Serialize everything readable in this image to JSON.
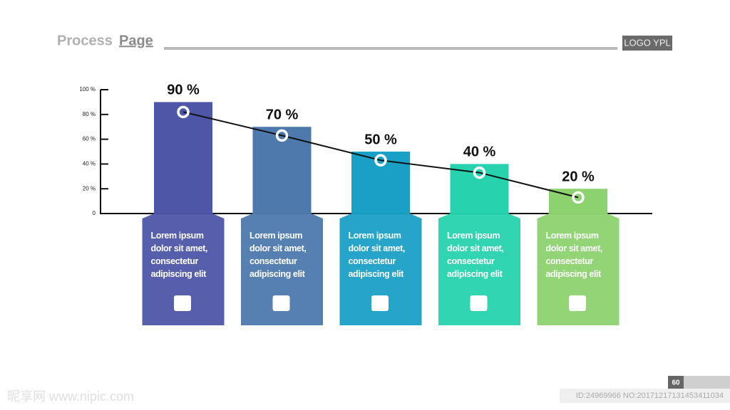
{
  "header": {
    "title_part1": "Process",
    "title_part2": "Page",
    "logo": "LOGO YPL"
  },
  "chart_data": {
    "type": "bar",
    "ylim": [
      0,
      100
    ],
    "yticks": [
      0,
      {
        "value": 20,
        "label": "20 %"
      },
      {
        "value": 40,
        "label": "40 %"
      },
      {
        "value": 60,
        "label": "60 %"
      },
      {
        "value": 80,
        "label": "80 %"
      },
      {
        "value": 100,
        "label": "100 %"
      }
    ],
    "series": [
      {
        "type": "bar",
        "colors": [
          "#4e56a8",
          "#4d79ad",
          "#1a9fc6",
          "#26d3ae",
          "#8cd26f"
        ],
        "values": [
          90,
          70,
          50,
          40,
          20
        ],
        "value_labels": [
          "90 %",
          "70 %",
          "50 %",
          "40 %",
          "20 %"
        ]
      },
      {
        "type": "line",
        "color": "#111111",
        "values": [
          82,
          63,
          43,
          33,
          13
        ]
      }
    ],
    "descriptions": [
      "Lorem ipsum dolor sit amet, consectetur adipiscing elit",
      "Lorem ipsum dolor sit amet, consectetur adipiscing elit",
      "Lorem ipsum dolor sit amet, consectetur adipiscing elit",
      "Lorem ipsum dolor sit amet, consectetur adipiscing elit",
      "Lorem ipsum dolor sit amet, consectetur adipiscing elit"
    ]
  },
  "footer": {
    "page": "60",
    "watermark": "昵享网 www.nipic.com",
    "id": "ID:24969966 NO:20171217131453411034"
  }
}
